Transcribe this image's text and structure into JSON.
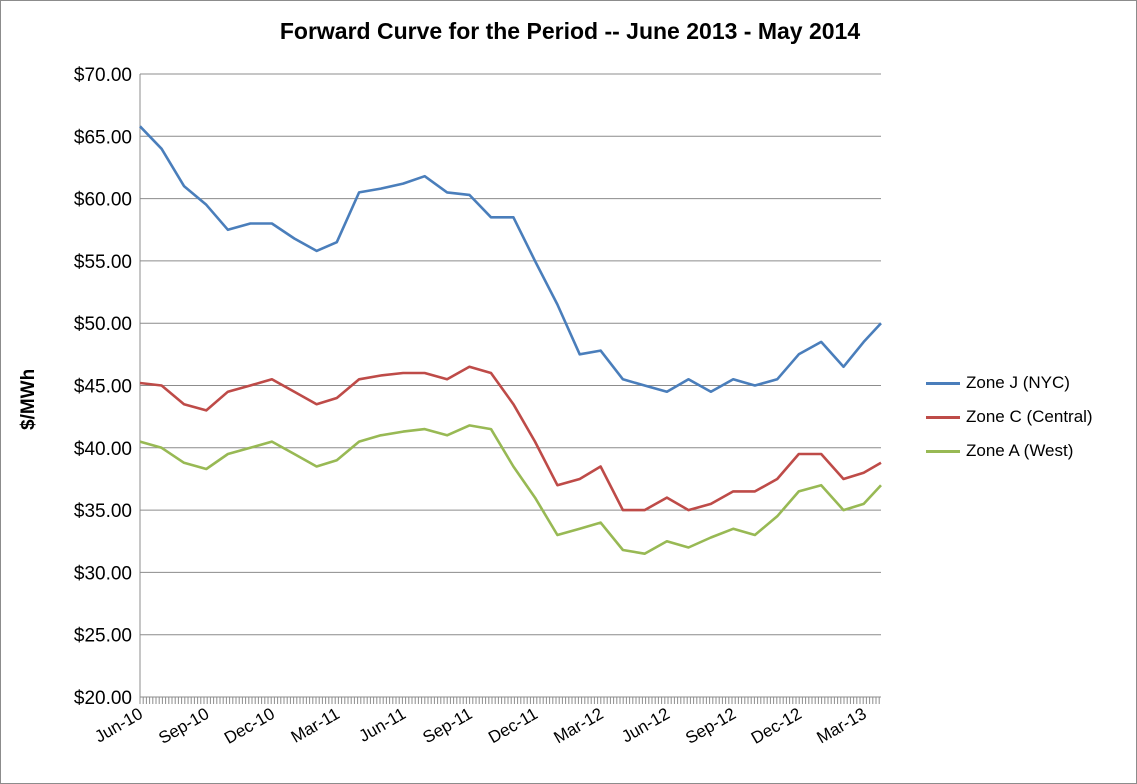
{
  "chart_data": {
    "type": "line",
    "title": "Forward Curve for the Period -- June 2013 - May 2014",
    "ylabel": "$/MWh",
    "xlabel": "",
    "ylim": [
      20,
      70
    ],
    "y_ticks": [
      "$20.00",
      "$25.00",
      "$30.00",
      "$35.00",
      "$40.00",
      "$45.00",
      "$50.00",
      "$55.00",
      "$60.00",
      "$65.00",
      "$70.00"
    ],
    "x_tick_labels": [
      "Jun-10",
      "Sep-10",
      "Dec-10",
      "Mar-11",
      "Jun-11",
      "Sep-11",
      "Dec-11",
      "Mar-12",
      "Jun-12",
      "Sep-12",
      "Dec-12",
      "Mar-13"
    ],
    "x": [
      "2010-06-01",
      "2010-07-01",
      "2010-08-01",
      "2010-09-01",
      "2010-10-01",
      "2010-11-01",
      "2010-12-01",
      "2011-01-01",
      "2011-02-01",
      "2011-03-01",
      "2011-04-01",
      "2011-05-01",
      "2011-06-01",
      "2011-07-01",
      "2011-08-01",
      "2011-09-01",
      "2011-10-01",
      "2011-11-01",
      "2011-12-01",
      "2012-01-01",
      "2012-02-01",
      "2012-03-01",
      "2012-04-01",
      "2012-05-01",
      "2012-06-01",
      "2012-07-01",
      "2012-08-01",
      "2012-09-01",
      "2012-10-01",
      "2012-11-01",
      "2012-12-01",
      "2013-01-01",
      "2013-02-01",
      "2013-03-01",
      "2013-03-25"
    ],
    "grid": true,
    "legend_position": "right",
    "series": [
      {
        "name": "Zone J (NYC)",
        "color": "#4a7ebb",
        "values": [
          65.8,
          64.0,
          61.0,
          59.5,
          57.5,
          58.0,
          58.0,
          56.8,
          55.8,
          56.5,
          60.5,
          60.8,
          61.2,
          61.8,
          60.5,
          60.3,
          58.5,
          58.5,
          55.0,
          51.5,
          47.5,
          47.8,
          45.5,
          45.0,
          44.5,
          45.5,
          44.5,
          45.5,
          45.0,
          45.5,
          47.5,
          48.5,
          46.5,
          48.5,
          50.0
        ]
      },
      {
        "name": "Zone C (Central)",
        "color": "#be4b48",
        "values": [
          45.2,
          45.0,
          43.5,
          43.0,
          44.5,
          45.0,
          45.5,
          44.5,
          43.5,
          44.0,
          45.5,
          45.8,
          46.0,
          46.0,
          45.5,
          46.5,
          46.0,
          43.5,
          40.5,
          37.0,
          37.5,
          38.5,
          35.0,
          35.0,
          36.0,
          35.0,
          35.5,
          36.5,
          36.5,
          37.5,
          39.5,
          39.5,
          37.5,
          38.0,
          38.8
        ]
      },
      {
        "name": "Zone A (West)",
        "color": "#98b954",
        "values": [
          40.5,
          40.0,
          38.8,
          38.3,
          39.5,
          40.0,
          40.5,
          39.5,
          38.5,
          39.0,
          40.5,
          41.0,
          41.3,
          41.5,
          41.0,
          41.8,
          41.5,
          38.5,
          36.0,
          33.0,
          33.5,
          34.0,
          31.8,
          31.5,
          32.5,
          32.0,
          32.8,
          33.5,
          33.0,
          34.5,
          36.5,
          37.0,
          35.0,
          35.5,
          37.0
        ]
      }
    ]
  }
}
